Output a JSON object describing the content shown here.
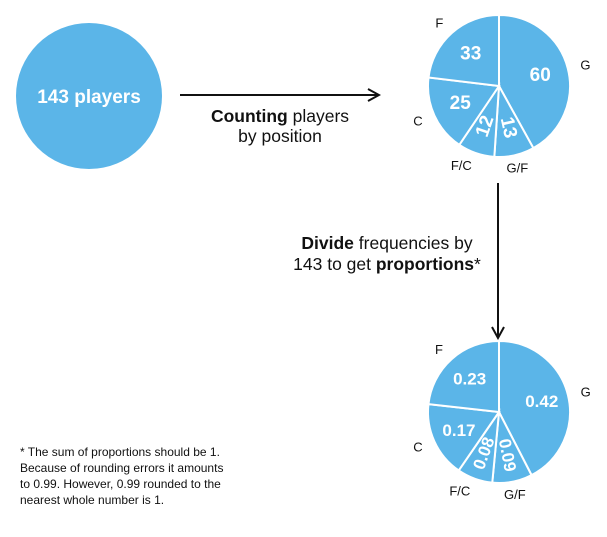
{
  "colors": {
    "fill": "#5BB5E8",
    "stroke": "#ffffff",
    "arrow": "#111111",
    "text_dark": "#111111",
    "text_light": "#ffffff"
  },
  "start": {
    "label": "143 players"
  },
  "step1": {
    "bold": "Counting",
    "rest": " players",
    "line2": "by position"
  },
  "step2": {
    "line1_bold": "Divide",
    "line1_rest": " frequencies by",
    "line2_pre": "143 to get ",
    "line2_bold": "proportions",
    "line2_post": "*"
  },
  "footnote": {
    "lines": [
      "* The sum of proportions should  be 1.",
      "Because of rounding errors it amounts",
      "to 0.99. However,  0.99 rounded to the",
      "nearest whole number is 1."
    ]
  },
  "chart_data": [
    {
      "type": "pie",
      "total": 143,
      "slices": [
        {
          "name": "G",
          "value": 60,
          "label": "60"
        },
        {
          "name": "G/F",
          "value": 13,
          "label": "13"
        },
        {
          "name": "F/C",
          "value": 12,
          "label": "12"
        },
        {
          "name": "C",
          "value": 25,
          "label": "25"
        },
        {
          "name": "F",
          "value": 33,
          "label": "33"
        }
      ]
    },
    {
      "type": "pie",
      "slices": [
        {
          "name": "G",
          "value": 0.42,
          "label": "0.42"
        },
        {
          "name": "G/F",
          "value": 0.09,
          "label": "0.09"
        },
        {
          "name": "F/C",
          "value": 0.08,
          "label": "0.08"
        },
        {
          "name": "C",
          "value": 0.17,
          "label": "0.17"
        },
        {
          "name": "F",
          "value": 0.23,
          "label": "0.23"
        }
      ]
    }
  ]
}
